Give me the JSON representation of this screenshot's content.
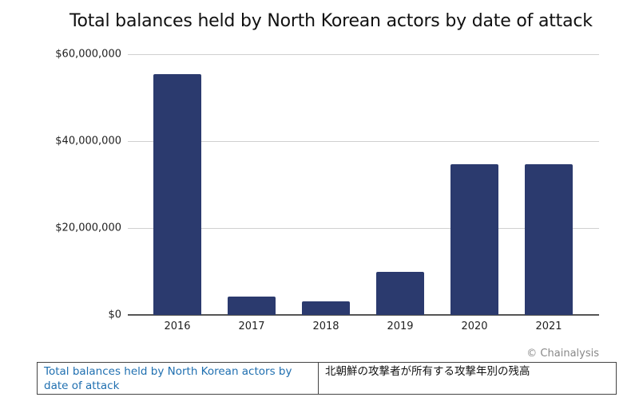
{
  "chart_data": {
    "type": "bar",
    "title": "Total balances held by North Korean actors by date of attack",
    "xlabel": "",
    "ylabel": "",
    "categories": [
      "2016",
      "2017",
      "2018",
      "2019",
      "2020",
      "2021"
    ],
    "values": [
      55400000,
      4200000,
      3100000,
      9900000,
      34700000,
      34700000
    ],
    "ylim": [
      0,
      60000000
    ],
    "yticks": [
      0,
      20000000,
      40000000,
      60000000
    ],
    "ytick_labels": [
      "$0",
      "$20,000,000",
      "$40,000,000",
      "$60,000,000"
    ],
    "grid": true,
    "legend": null,
    "bar_color": "#2b3a6e"
  },
  "credit": "© Chainalysis",
  "caption_table": {
    "english": "Total balances held by North Korean actors by date of attack",
    "japanese": "北朝鮮の攻撃者が所有する攻撃年別の残高"
  }
}
